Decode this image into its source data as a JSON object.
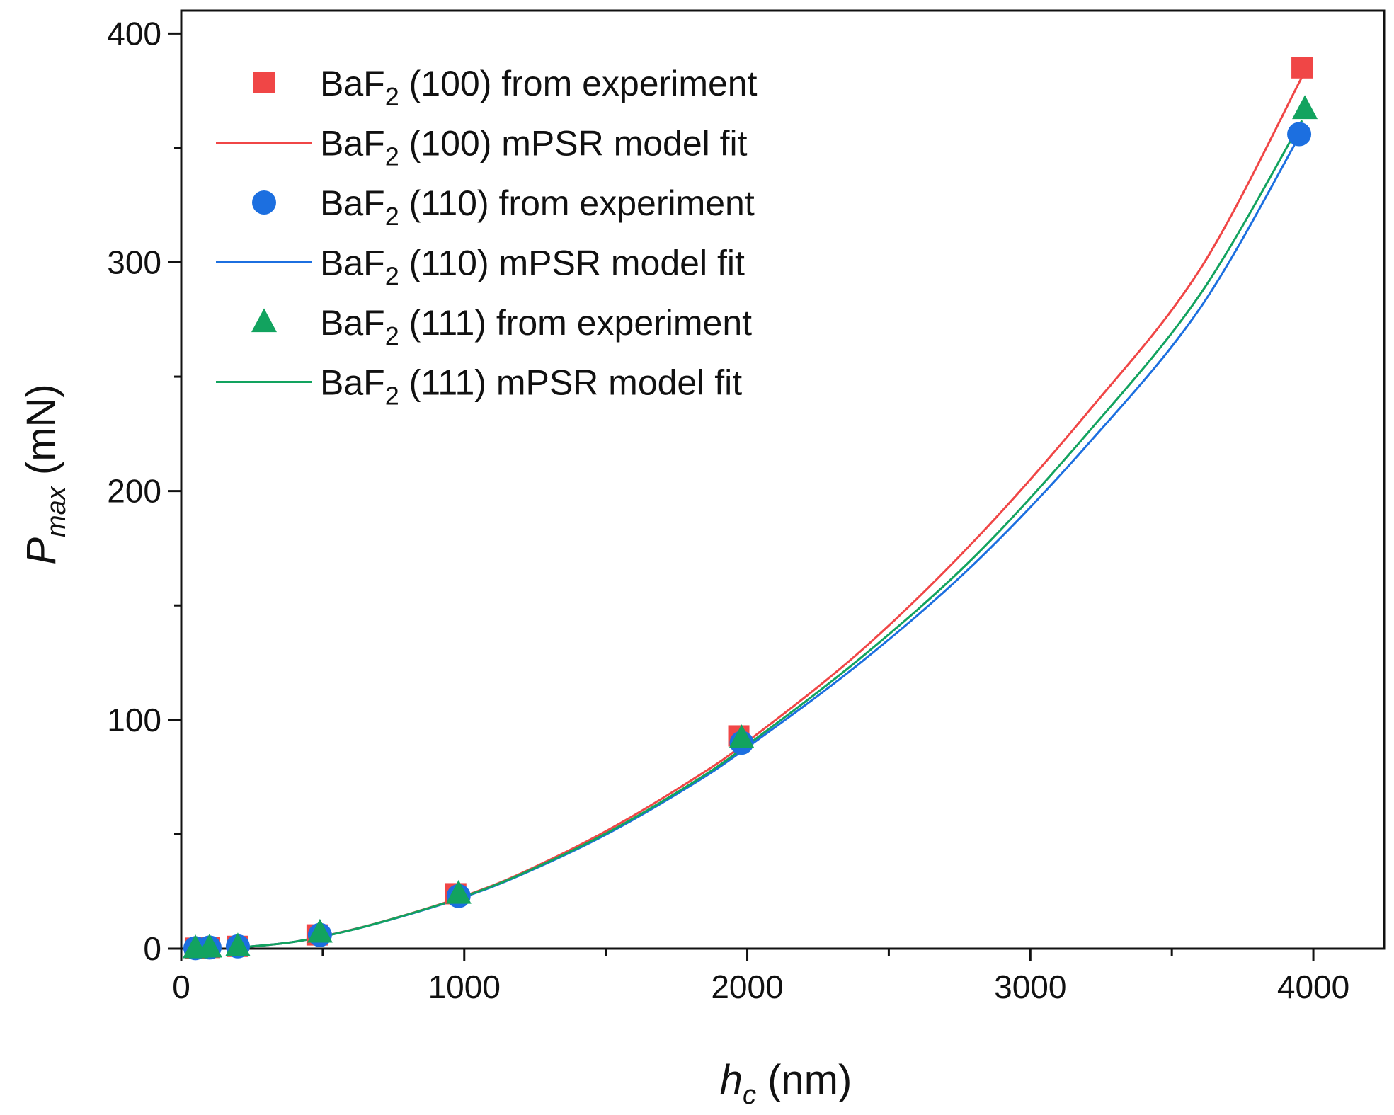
{
  "chart_data": {
    "type": "scatter",
    "x_label": {
      "var": "h",
      "sub": "c",
      "unit": "(nm)"
    },
    "y_label": {
      "var": "P",
      "sub": "max",
      "unit": "(mN)"
    },
    "xlim": [
      0,
      4250
    ],
    "ylim": [
      0,
      410
    ],
    "x_ticks": [
      0,
      1000,
      2000,
      3000,
      4000
    ],
    "x_minor_ticks": [
      500,
      1500,
      2500,
      3500
    ],
    "y_ticks": [
      0,
      100,
      200,
      300,
      400
    ],
    "y_minor_ticks": [
      50,
      150,
      250,
      350
    ],
    "grid": false,
    "legend_position": "top-left",
    "series": [
      {
        "name": "BaF2 (100) from experiment",
        "name_parts": {
          "pre": "BaF",
          "sub": "2",
          "post": " (100) from experiment"
        },
        "kind": "points",
        "marker": "square",
        "color": "#f04646",
        "x": [
          50,
          100,
          200,
          480,
          970,
          1970,
          3960
        ],
        "y": [
          0.2,
          0.5,
          1.0,
          6.0,
          24,
          93,
          385
        ]
      },
      {
        "name": "BaF2 (100) mPSR model fit",
        "name_parts": {
          "pre": "BaF",
          "sub": "2",
          "post": " (100) mPSR model fit"
        },
        "kind": "line",
        "color": "#f04646",
        "x": [
          200,
          400,
          600,
          800,
          1000,
          1200,
          1500,
          1800,
          2000,
          2400,
          2800,
          3200,
          3600,
          3960
        ],
        "y": [
          0.4,
          3.0,
          8.2,
          15.0,
          23.0,
          32.9,
          51.3,
          73.4,
          90.5,
          130.0,
          178.0,
          234.0,
          297.0,
          381.0
        ]
      },
      {
        "name": "BaF2 (110) from experiment",
        "name_parts": {
          "pre": "BaF",
          "sub": "2",
          "post": " (110) from experiment"
        },
        "kind": "points",
        "marker": "circle",
        "color": "#1c6fe0",
        "x": [
          50,
          100,
          200,
          490,
          980,
          1980,
          3950
        ],
        "y": [
          0.2,
          0.5,
          1.0,
          6.0,
          23,
          90,
          356
        ]
      },
      {
        "name": "BaF2 (110) mPSR model fit",
        "name_parts": {
          "pre": "BaF",
          "sub": "2",
          "post": " (110) mPSR model fit"
        },
        "kind": "line",
        "color": "#1c6fe0",
        "x": [
          200,
          400,
          600,
          800,
          1000,
          1200,
          1500,
          1800,
          2000,
          2400,
          2800,
          3200,
          3600,
          3950
        ],
        "y": [
          0.4,
          3.0,
          8.1,
          14.8,
          22.6,
          32.2,
          49.8,
          71.3,
          88.0,
          125.0,
          168.0,
          220.0,
          280.0,
          355.0
        ]
      },
      {
        "name": "BaF2 (111) from experiment",
        "name_parts": {
          "pre": "BaF",
          "sub": "2",
          "post": " (111) from experiment"
        },
        "kind": "points",
        "marker": "triangle",
        "color": "#12a35f",
        "x": [
          50,
          100,
          200,
          490,
          980,
          1980,
          3970
        ],
        "y": [
          0.2,
          0.5,
          1.0,
          7.0,
          24,
          92,
          367
        ]
      },
      {
        "name": "BaF2 (111) mPSR model fit",
        "name_parts": {
          "pre": "BaF",
          "sub": "2",
          "post": " (111) mPSR model fit"
        },
        "kind": "line",
        "color": "#12a35f",
        "x": [
          200,
          400,
          600,
          800,
          1000,
          1200,
          1500,
          1800,
          2000,
          2400,
          2800,
          3200,
          3600,
          3960
        ],
        "y": [
          0.4,
          3.0,
          8.1,
          14.9,
          22.8,
          32.5,
          50.3,
          72.0,
          89.0,
          127.0,
          171.0,
          225.0,
          286.0,
          362.0
        ]
      }
    ]
  }
}
